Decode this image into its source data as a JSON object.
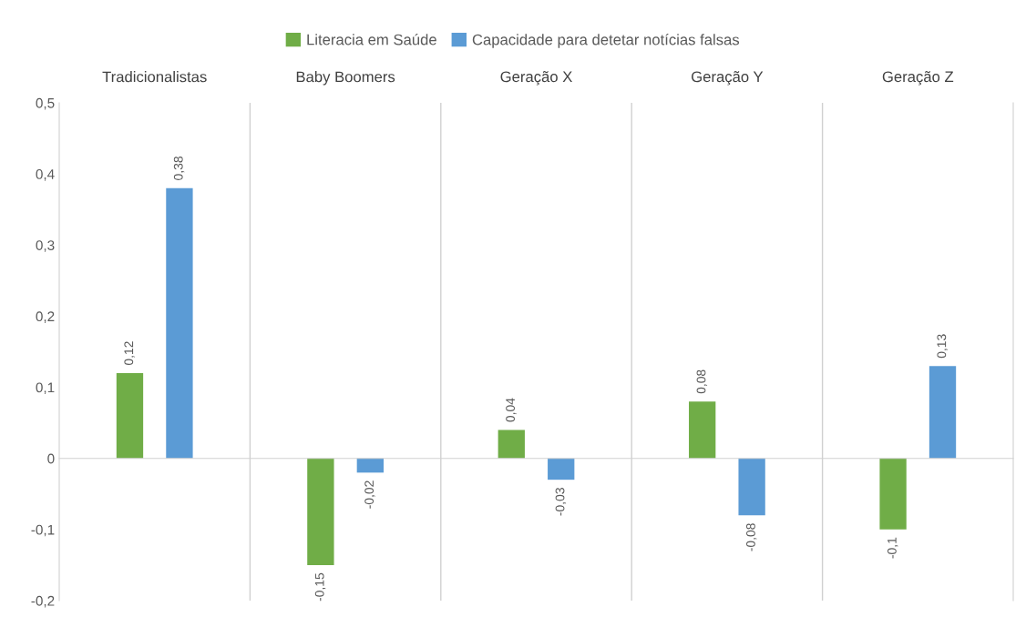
{
  "chart_data": {
    "type": "bar",
    "categories": [
      "Tradicionalistas",
      "Baby Boomers",
      "Geração X",
      "Geração Y",
      "Geração Z"
    ],
    "legend": "top",
    "grid": "x",
    "ylim": [
      -0.2,
      0.5
    ],
    "yticks": [
      {
        "value": -0.2,
        "label": "-0,2"
      },
      {
        "value": -0.1,
        "label": "-0,1"
      },
      {
        "value": 0,
        "label": "0"
      },
      {
        "value": 0.1,
        "label": "0,1"
      },
      {
        "value": 0.2,
        "label": "0,2"
      },
      {
        "value": 0.3,
        "label": "0,3"
      },
      {
        "value": 0.4,
        "label": "0,4"
      },
      {
        "value": 0.5,
        "label": "0,5"
      }
    ],
    "series": [
      {
        "name": "Literacia em Saúde",
        "color": "#70ad47",
        "values": [
          0.12,
          -0.15,
          0.04,
          0.08,
          -0.1
        ],
        "value_labels": [
          "0,12",
          "-0,15",
          "0,04",
          "0,08",
          "-0,1"
        ]
      },
      {
        "name": "Capacidade para detetar notícias falsas",
        "color": "#5b9bd5",
        "values": [
          0.38,
          -0.02,
          -0.03,
          -0.08,
          0.13
        ],
        "value_labels": [
          "0,38",
          "-0,02",
          "-0,03",
          "-0,08",
          "0,13"
        ]
      }
    ]
  }
}
